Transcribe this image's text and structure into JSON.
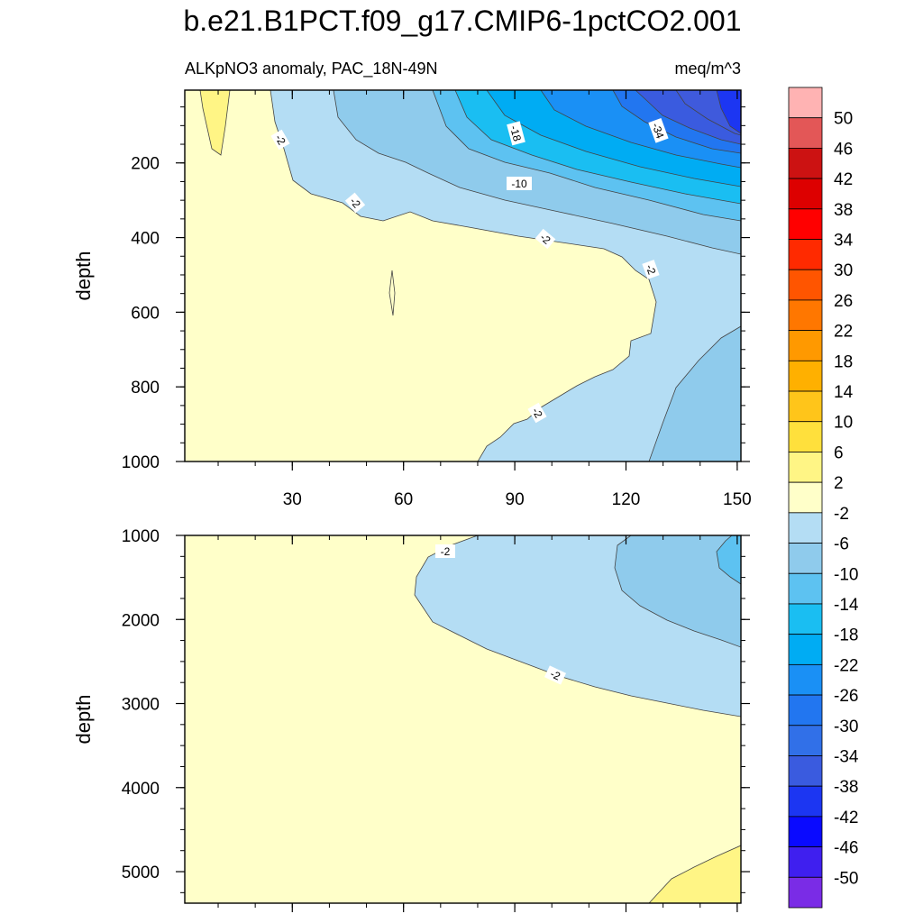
{
  "chart_data": {
    "type": "contour",
    "title": "b.e21.B1PCT.f09_g17.CMIP6-1pctCO2.001",
    "panels": [
      {
        "name": "upper",
        "left_string": "ALKpNO3 anomaly, PAC_18N-49N",
        "right_string": "meq/m^3",
        "ylabel": "depth",
        "xlim": [
          1,
          151
        ],
        "ylim": [
          1000,
          5
        ],
        "x_ticks": [
          "30",
          "60",
          "90",
          "120",
          "150"
        ],
        "y_ticks": [
          "200",
          "400",
          "600",
          "800",
          "1000"
        ],
        "contour_labels": [
          "-2",
          "-2",
          "-2",
          "-2",
          "-2",
          "-10",
          "-18",
          "-34"
        ]
      },
      {
        "name": "lower",
        "ylabel": "depth",
        "xlim": [
          1,
          151
        ],
        "ylim": [
          5375,
          1000
        ],
        "y_ticks": [
          "1000",
          "2000",
          "3000",
          "4000",
          "5000"
        ],
        "contour_labels": [
          "-2",
          "-2"
        ]
      }
    ],
    "colorbar": {
      "labels": [
        "50",
        "46",
        "42",
        "38",
        "34",
        "30",
        "26",
        "22",
        "18",
        "14",
        "10",
        "6",
        "2",
        "-2",
        "-6",
        "-10",
        "-14",
        "-18",
        "-22",
        "-26",
        "-30",
        "-34",
        "-38",
        "-42",
        "-46",
        "-50"
      ],
      "colors": [
        "#FFB3B3",
        "#E35757",
        "#CC1212",
        "#DD0000",
        "#FF0000",
        "#FF2A00",
        "#FF5500",
        "#FF7700",
        "#FF9900",
        "#FFB000",
        "#FFC51A",
        "#FFE03C",
        "#FFF585",
        "#FFFFC9",
        "#B4DDF4",
        "#8FCBEC",
        "#5DC2F1",
        "#1ABEF2",
        "#00ACF3",
        "#1A90F5",
        "#2276F0",
        "#3170E8",
        "#3A5BDF",
        "#1C36F2",
        "#0A0AFF",
        "#3F1FEF",
        "#7A2CE6"
      ]
    }
  }
}
